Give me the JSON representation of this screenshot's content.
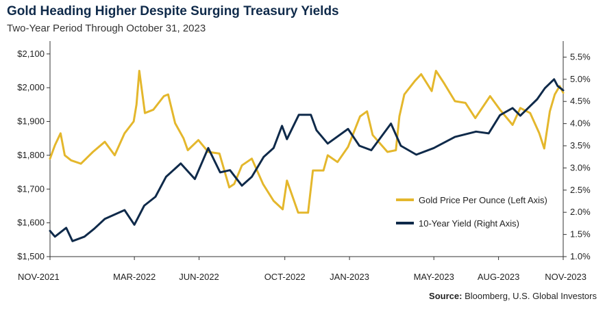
{
  "title": "Gold Heading Higher Despite Surging Treasury Yields",
  "subtitle": "Two-Year Period Through October 31, 2023",
  "source_label": "Source:",
  "source_text": "Bloomberg, U.S. Global Investors",
  "colors": {
    "gold": "#e4b72c",
    "yield": "#0f2a4a",
    "axis": "#333333"
  },
  "chart_data": {
    "type": "line",
    "left_axis": {
      "ylim": [
        1500,
        2130
      ],
      "ticks": [
        1500,
        1600,
        1700,
        1800,
        1900,
        2000,
        2100
      ],
      "tick_labels": [
        "$1,500",
        "$1,600",
        "$1,700",
        "$1,800",
        "$1,900",
        "$2,000",
        "$2,100"
      ]
    },
    "right_axis": {
      "ylim": [
        1.0,
        5.8
      ],
      "ticks": [
        1.0,
        1.5,
        2.0,
        2.5,
        3.0,
        3.5,
        4.0,
        4.5,
        5.0,
        5.5
      ],
      "tick_labels": [
        "1.0%",
        "1.5%",
        "2.0%",
        "2.5%",
        "3.0%",
        "3.5%",
        "4.0%",
        "4.5%",
        "5.0%",
        "5.5%"
      ]
    },
    "x_axis": {
      "range": [
        "2021-11-01",
        "2023-11-01"
      ],
      "ticks": [
        "2021-11-01",
        "2022-03-01",
        "2022-06-01",
        "2022-10-01",
        "2023-01-01",
        "2023-05-01",
        "2023-08-01",
        "2023-11-01"
      ],
      "tick_labels": [
        "NOV-2021",
        "MAR-2022",
        "JUN-2022",
        "OCT-2022",
        "JAN-2023",
        "MAY-2023",
        "AUG-2023",
        "NOV-2023"
      ]
    },
    "legend_position": "right-middle",
    "series": [
      {
        "name": "Gold Price Per Ounce (Left Axis)",
        "axis": "left",
        "points": [
          [
            "2021-11-01",
            1790
          ],
          [
            "2021-11-08",
            1830
          ],
          [
            "2021-11-16",
            1865
          ],
          [
            "2021-11-22",
            1800
          ],
          [
            "2021-12-01",
            1785
          ],
          [
            "2021-12-15",
            1775
          ],
          [
            "2022-01-01",
            1810
          ],
          [
            "2022-01-18",
            1840
          ],
          [
            "2022-02-01",
            1800
          ],
          [
            "2022-02-15",
            1865
          ],
          [
            "2022-02-28",
            1900
          ],
          [
            "2022-03-04",
            1950
          ],
          [
            "2022-03-08",
            2050
          ],
          [
            "2022-03-16",
            1925
          ],
          [
            "2022-03-28",
            1935
          ],
          [
            "2022-04-12",
            1975
          ],
          [
            "2022-04-18",
            1980
          ],
          [
            "2022-04-28",
            1895
          ],
          [
            "2022-05-10",
            1850
          ],
          [
            "2022-05-16",
            1815
          ],
          [
            "2022-05-31",
            1845
          ],
          [
            "2022-06-14",
            1810
          ],
          [
            "2022-06-30",
            1805
          ],
          [
            "2022-07-14",
            1705
          ],
          [
            "2022-07-21",
            1715
          ],
          [
            "2022-08-01",
            1770
          ],
          [
            "2022-08-15",
            1790
          ],
          [
            "2022-08-31",
            1715
          ],
          [
            "2022-09-15",
            1665
          ],
          [
            "2022-09-28",
            1640
          ],
          [
            "2022-10-04",
            1725
          ],
          [
            "2022-10-20",
            1630
          ],
          [
            "2022-11-03",
            1630
          ],
          [
            "2022-11-10",
            1755
          ],
          [
            "2022-11-25",
            1755
          ],
          [
            "2022-12-01",
            1800
          ],
          [
            "2022-12-15",
            1780
          ],
          [
            "2022-12-30",
            1825
          ],
          [
            "2023-01-16",
            1915
          ],
          [
            "2023-01-26",
            1930
          ],
          [
            "2023-02-03",
            1860
          ],
          [
            "2023-02-24",
            1810
          ],
          [
            "2023-03-08",
            1815
          ],
          [
            "2023-03-13",
            1915
          ],
          [
            "2023-03-20",
            1980
          ],
          [
            "2023-04-04",
            2020
          ],
          [
            "2023-04-13",
            2040
          ],
          [
            "2023-04-28",
            1990
          ],
          [
            "2023-05-04",
            2050
          ],
          [
            "2023-05-15",
            2015
          ],
          [
            "2023-05-31",
            1960
          ],
          [
            "2023-06-15",
            1955
          ],
          [
            "2023-06-29",
            1910
          ],
          [
            "2023-07-20",
            1975
          ],
          [
            "2023-08-03",
            1935
          ],
          [
            "2023-08-21",
            1890
          ],
          [
            "2023-09-01",
            1940
          ],
          [
            "2023-09-15",
            1925
          ],
          [
            "2023-09-28",
            1865
          ],
          [
            "2023-10-05",
            1820
          ],
          [
            "2023-10-13",
            1930
          ],
          [
            "2023-10-20",
            1980
          ],
          [
            "2023-10-27",
            2005
          ],
          [
            "2023-11-01",
            1985
          ]
        ]
      },
      {
        "name": "10-Year Yield (Right Axis)",
        "axis": "right",
        "points": [
          [
            "2021-11-01",
            1.58
          ],
          [
            "2021-11-08",
            1.45
          ],
          [
            "2021-11-24",
            1.65
          ],
          [
            "2021-12-03",
            1.35
          ],
          [
            "2021-12-20",
            1.45
          ],
          [
            "2022-01-03",
            1.63
          ],
          [
            "2022-01-18",
            1.85
          ],
          [
            "2022-02-15",
            2.05
          ],
          [
            "2022-03-01",
            1.72
          ],
          [
            "2022-03-15",
            2.15
          ],
          [
            "2022-03-31",
            2.35
          ],
          [
            "2022-04-15",
            2.8
          ],
          [
            "2022-05-06",
            3.1
          ],
          [
            "2022-05-26",
            2.75
          ],
          [
            "2022-06-14",
            3.45
          ],
          [
            "2022-07-01",
            2.9
          ],
          [
            "2022-07-15",
            2.95
          ],
          [
            "2022-08-01",
            2.6
          ],
          [
            "2022-08-15",
            2.8
          ],
          [
            "2022-09-01",
            3.25
          ],
          [
            "2022-09-15",
            3.45
          ],
          [
            "2022-09-27",
            3.95
          ],
          [
            "2022-10-04",
            3.65
          ],
          [
            "2022-10-21",
            4.2
          ],
          [
            "2022-11-07",
            4.2
          ],
          [
            "2022-11-15",
            3.85
          ],
          [
            "2022-12-01",
            3.55
          ],
          [
            "2022-12-30",
            3.88
          ],
          [
            "2023-01-15",
            3.5
          ],
          [
            "2023-02-01",
            3.4
          ],
          [
            "2023-03-01",
            4.0
          ],
          [
            "2023-03-15",
            3.5
          ],
          [
            "2023-04-06",
            3.3
          ],
          [
            "2023-05-01",
            3.45
          ],
          [
            "2023-05-31",
            3.7
          ],
          [
            "2023-06-30",
            3.82
          ],
          [
            "2023-07-18",
            3.78
          ],
          [
            "2023-08-03",
            4.19
          ],
          [
            "2023-08-21",
            4.35
          ],
          [
            "2023-09-01",
            4.18
          ],
          [
            "2023-09-25",
            4.55
          ],
          [
            "2023-10-06",
            4.8
          ],
          [
            "2023-10-19",
            5.0
          ],
          [
            "2023-10-24",
            4.85
          ],
          [
            "2023-11-01",
            4.75
          ]
        ]
      }
    ]
  }
}
